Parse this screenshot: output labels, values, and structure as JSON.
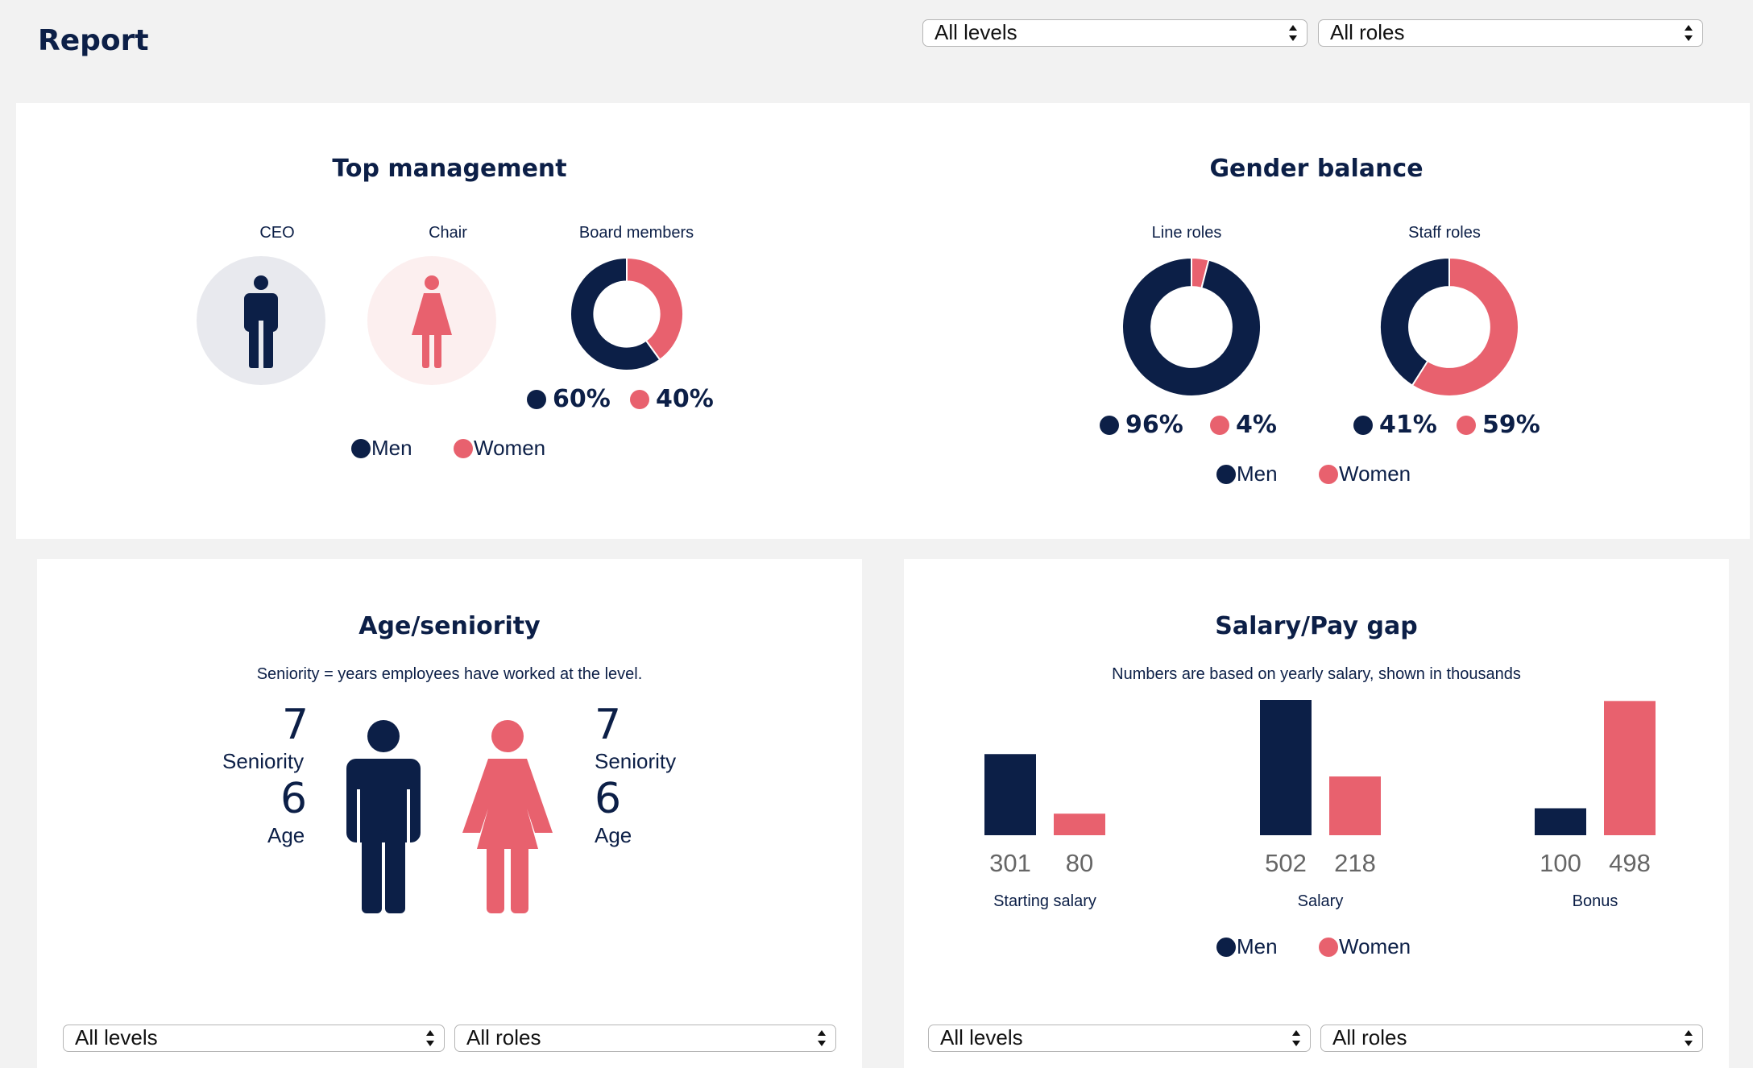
{
  "header": {
    "title": "Report",
    "level_filter": "All levels",
    "role_filter": "All roles"
  },
  "colors": {
    "men": "#0c1f47",
    "women": "#e8616e",
    "men_bg": "#e8e9ee",
    "women_bg": "#fcefef"
  },
  "top_management": {
    "title": "Top management",
    "ceo_label": "CEO",
    "chair_label": "Chair",
    "board_label": "Board members",
    "ceo_icon": "man-icon",
    "chair_icon": "woman-icon",
    "board": {
      "men_pct": "60%",
      "women_pct": "40%",
      "men_value": 60,
      "women_value": 40
    },
    "legend": {
      "men": "Men",
      "women": "Women"
    }
  },
  "gender_balance": {
    "title": "Gender balance",
    "line_label": "Line roles",
    "staff_label": "Staff roles",
    "line": {
      "men_pct": "96%",
      "women_pct": "4%",
      "men_value": 96,
      "women_value": 4
    },
    "staff": {
      "men_pct": "41%",
      "women_pct": "59%",
      "men_value": 41,
      "women_value": 59
    },
    "legend": {
      "men": "Men",
      "women": "Women"
    }
  },
  "age_seniority": {
    "title": "Age/seniority",
    "subtitle": "Seniority = years employees have worked at the level.",
    "men": {
      "seniority": "7",
      "seniority_label": "Seniority",
      "age": "6",
      "age_label": "Age"
    },
    "women": {
      "seniority": "7",
      "seniority_label": "Seniority",
      "age": "6",
      "age_label": "Age"
    },
    "level_filter": "All levels",
    "role_filter": "All roles"
  },
  "salary": {
    "title": "Salary/Pay gap",
    "subtitle": "Numbers are based on yearly salary, shown in thousands",
    "legend": {
      "men": "Men",
      "women": "Women"
    },
    "level_filter": "All levels",
    "role_filter": "All roles"
  },
  "chart_data": {
    "type": "bar",
    "title": "Salary/Pay gap",
    "categories": [
      "Starting salary",
      "Salary",
      "Bonus"
    ],
    "series": [
      {
        "name": "Men",
        "values": [
          301,
          502,
          100
        ],
        "labels": [
          "301",
          "502",
          "100"
        ]
      },
      {
        "name": "Women",
        "values": [
          80,
          218,
          498
        ],
        "labels": [
          "80",
          "218",
          "498"
        ]
      }
    ],
    "legend": "bottom",
    "grid": false
  }
}
